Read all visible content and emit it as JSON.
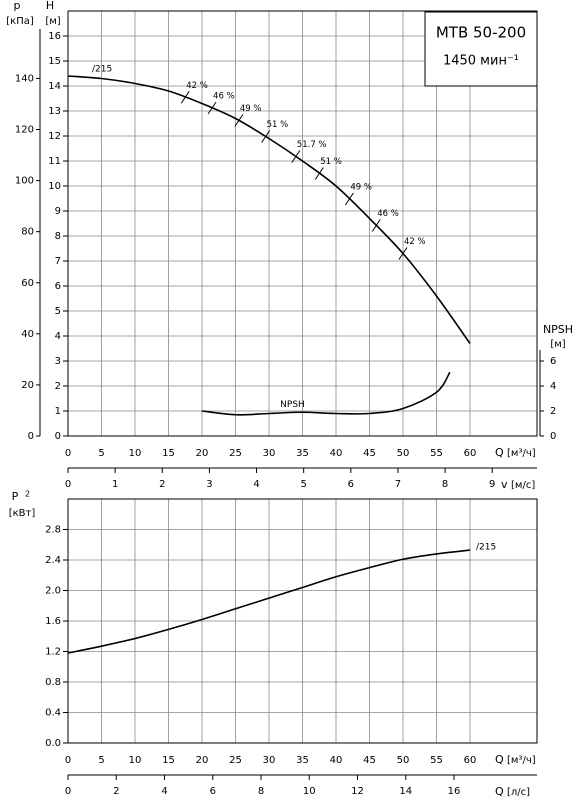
{
  "chart_data": [
    {
      "type": "line",
      "title": "MTB 50-200",
      "subtitle": "1450 мин⁻¹",
      "xlim": [
        0,
        70
      ],
      "xticks": [
        0,
        5,
        10,
        15,
        20,
        25,
        30,
        35,
        40,
        45,
        50,
        55,
        60
      ],
      "x2lim": [
        0,
        9.95
      ],
      "x2ticks": [
        0,
        1,
        2,
        3,
        4,
        5,
        6,
        7,
        8,
        9
      ],
      "ylim": [
        0,
        17
      ],
      "yticks": [
        0,
        1,
        2,
        3,
        4,
        5,
        6,
        7,
        8,
        9,
        10,
        11,
        12,
        13,
        14,
        15,
        16
      ],
      "y2lim": [
        0,
        34
      ],
      "y2ticks": [
        0,
        2,
        4,
        6
      ],
      "y3lim": [
        0,
        166.4
      ],
      "y3ticks": [
        0,
        20,
        40,
        60,
        80,
        100,
        120,
        140
      ],
      "grid": true,
      "series": [
        {
          "name": "/215",
          "color": "#000000",
          "x": [
            0,
            5,
            10,
            15,
            20,
            25,
            30,
            35,
            40,
            45,
            50,
            55,
            60
          ],
          "values": [
            14.4,
            14.3,
            14.1,
            13.8,
            13.3,
            12.7,
            11.9,
            11.0,
            10.0,
            8.7,
            7.3,
            5.6,
            3.7
          ]
        },
        {
          "name": "NPSH",
          "color": "#000000",
          "axis": "y2",
          "x": [
            20,
            25,
            30,
            35,
            40,
            45,
            50,
            55,
            57
          ],
          "values": [
            2.0,
            1.7,
            1.8,
            1.9,
            1.8,
            1.8,
            2.2,
            3.5,
            5.1
          ]
        }
      ],
      "efficiency": {
        "x": [
          17.5,
          21.5,
          25.5,
          29.5,
          34,
          37.5,
          42,
          46,
          50
        ],
        "labels": [
          "42 %",
          "46 %",
          "49 %",
          "51 %",
          "51.7 %",
          "51 %",
          "49 %",
          "46 %",
          "42 %"
        ]
      },
      "axis_labels": {
        "p": "p",
        "p_unit": "[кПа]",
        "h": "H",
        "h_unit": "[м]",
        "npsh": "NPSH",
        "npsh_unit": "[м]",
        "q": "Q",
        "q_unit": "[м³/ч]",
        "v": "v",
        "v_unit": "[м/с]"
      }
    },
    {
      "type": "line",
      "xlim": [
        0,
        70
      ],
      "xticks": [
        0,
        5,
        10,
        15,
        20,
        25,
        30,
        35,
        40,
        45,
        50,
        55,
        60
      ],
      "x2lim": [
        0,
        19.44
      ],
      "x2ticks": [
        0,
        2,
        4,
        6,
        8,
        10,
        12,
        14,
        16
      ],
      "ylim": [
        0,
        3.2
      ],
      "yticks": [
        {
          "value": 0,
          "label": "0.0"
        },
        0.4,
        0.8,
        1.2,
        1.6,
        {
          "value": 2,
          "label": "2.0"
        },
        2.4,
        2.8
      ],
      "grid": true,
      "series": [
        {
          "name": "/215",
          "color": "#000000",
          "x": [
            0,
            5,
            10,
            15,
            20,
            25,
            30,
            35,
            40,
            45,
            50,
            55,
            60
          ],
          "values": [
            1.18,
            1.27,
            1.37,
            1.49,
            1.62,
            1.76,
            1.9,
            2.04,
            2.18,
            2.3,
            2.41,
            2.48,
            2.53
          ]
        }
      ],
      "axis_labels": {
        "p": "P",
        "p_sub": "2",
        "p_unit": "[кВт]",
        "q": "Q",
        "q_unit": "[м³/ч]",
        "q2": "Q",
        "q2_unit": "[л/с]"
      }
    }
  ]
}
